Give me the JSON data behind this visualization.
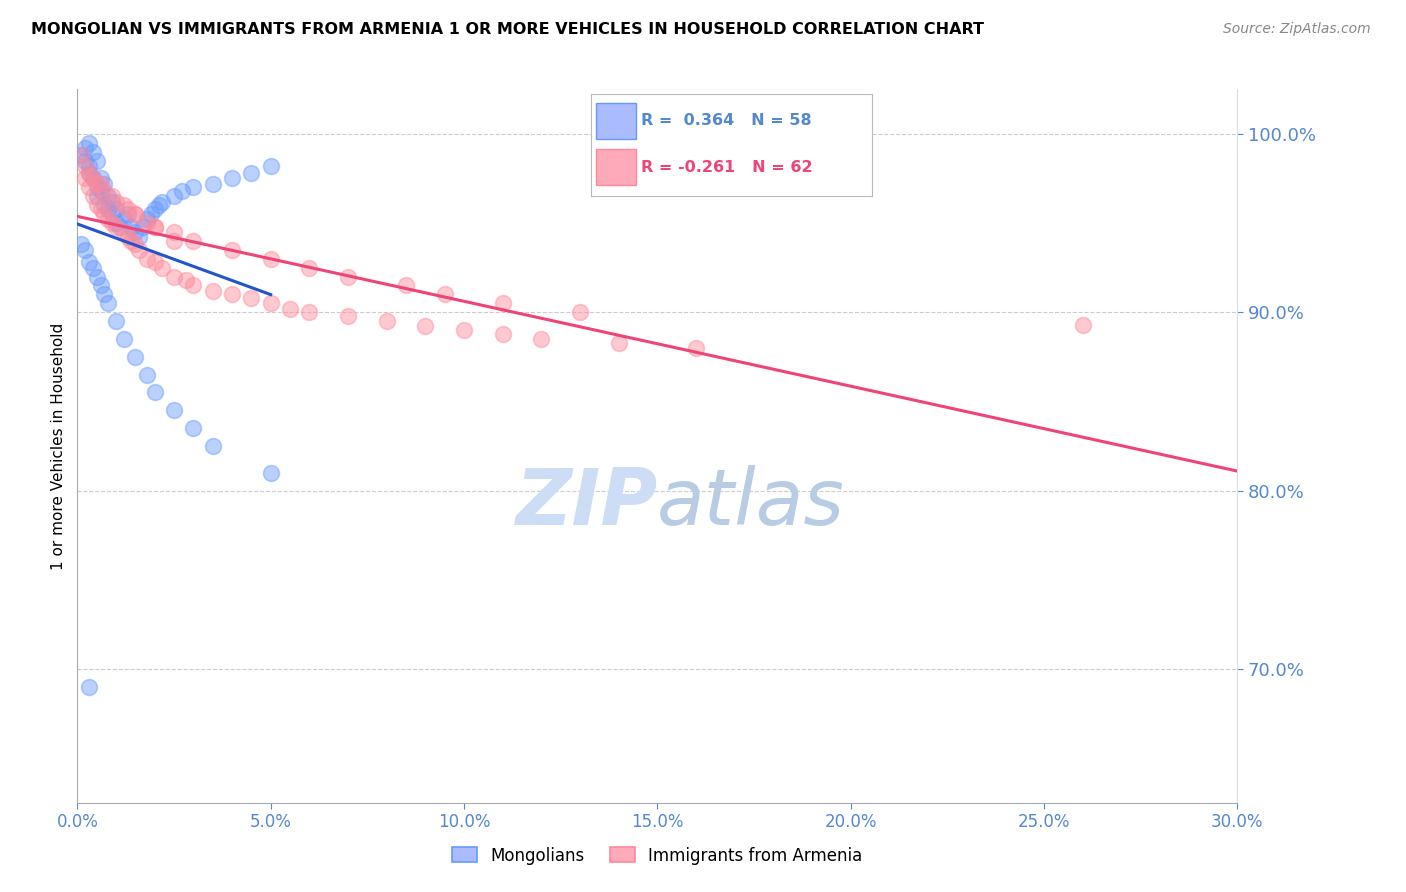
{
  "title": "MONGOLIAN VS IMMIGRANTS FROM ARMENIA 1 OR MORE VEHICLES IN HOUSEHOLD CORRELATION CHART",
  "source": "Source: ZipAtlas.com",
  "ylabel": "1 or more Vehicles in Household",
  "xmin": 0.0,
  "xmax": 0.3,
  "ymin": 0.625,
  "ymax": 1.025,
  "yticks": [
    0.7,
    0.8,
    0.9,
    1.0
  ],
  "ytick_labels": [
    "70.0%",
    "80.0%",
    "90.0%",
    "100.0%"
  ],
  "xticks": [
    0.0,
    0.05,
    0.1,
    0.15,
    0.2,
    0.25,
    0.3
  ],
  "xtick_labels": [
    "0.0%",
    "5.0%",
    "10.0%",
    "15.0%",
    "20.0%",
    "25.0%",
    "30.0%"
  ],
  "blue_R": 0.364,
  "blue_N": 58,
  "pink_R": -0.261,
  "pink_N": 62,
  "blue_color": "#6699ff",
  "pink_color": "#ff8899",
  "blue_trend_color": "#2255cc",
  "pink_trend_color": "#ee4477",
  "watermark_color": "#ccddf5",
  "grid_color": "#cccccc",
  "tick_color": "#5588cc",
  "blue_scatter_x": [
    0.001,
    0.002,
    0.002,
    0.003,
    0.003,
    0.003,
    0.004,
    0.004,
    0.005,
    0.005,
    0.005,
    0.006,
    0.006,
    0.007,
    0.007,
    0.008,
    0.008,
    0.009,
    0.009,
    0.01,
    0.01,
    0.011,
    0.012,
    0.013,
    0.014,
    0.015,
    0.016,
    0.017,
    0.018,
    0.019,
    0.02,
    0.021,
    0.022,
    0.025,
    0.027,
    0.03,
    0.035,
    0.04,
    0.045,
    0.05,
    0.001,
    0.002,
    0.003,
    0.004,
    0.005,
    0.006,
    0.007,
    0.008,
    0.01,
    0.012,
    0.015,
    0.018,
    0.02,
    0.025,
    0.03,
    0.035,
    0.05,
    0.003
  ],
  "blue_scatter_y": [
    0.988,
    0.992,
    0.985,
    0.995,
    0.982,
    0.978,
    0.99,
    0.975,
    0.985,
    0.97,
    0.965,
    0.975,
    0.968,
    0.972,
    0.96,
    0.965,
    0.958,
    0.962,
    0.955,
    0.958,
    0.95,
    0.948,
    0.952,
    0.955,
    0.948,
    0.945,
    0.942,
    0.948,
    0.952,
    0.955,
    0.958,
    0.96,
    0.962,
    0.965,
    0.968,
    0.97,
    0.972,
    0.975,
    0.978,
    0.982,
    0.938,
    0.935,
    0.928,
    0.925,
    0.92,
    0.915,
    0.91,
    0.905,
    0.895,
    0.885,
    0.875,
    0.865,
    0.855,
    0.845,
    0.835,
    0.825,
    0.81,
    0.69
  ],
  "pink_scatter_x": [
    0.001,
    0.002,
    0.003,
    0.004,
    0.005,
    0.006,
    0.007,
    0.008,
    0.009,
    0.01,
    0.012,
    0.013,
    0.014,
    0.015,
    0.016,
    0.018,
    0.02,
    0.022,
    0.025,
    0.028,
    0.03,
    0.035,
    0.04,
    0.045,
    0.05,
    0.055,
    0.06,
    0.07,
    0.08,
    0.09,
    0.1,
    0.11,
    0.12,
    0.14,
    0.16,
    0.003,
    0.005,
    0.007,
    0.01,
    0.013,
    0.015,
    0.018,
    0.02,
    0.025,
    0.03,
    0.04,
    0.05,
    0.06,
    0.07,
    0.085,
    0.095,
    0.11,
    0.13,
    0.002,
    0.004,
    0.006,
    0.009,
    0.012,
    0.015,
    0.02,
    0.025,
    0.26
  ],
  "pink_scatter_y": [
    0.988,
    0.975,
    0.97,
    0.965,
    0.96,
    0.958,
    0.955,
    0.952,
    0.95,
    0.948,
    0.945,
    0.942,
    0.94,
    0.938,
    0.935,
    0.93,
    0.928,
    0.925,
    0.92,
    0.918,
    0.915,
    0.912,
    0.91,
    0.908,
    0.905,
    0.902,
    0.9,
    0.898,
    0.895,
    0.892,
    0.89,
    0.888,
    0.885,
    0.883,
    0.88,
    0.978,
    0.972,
    0.968,
    0.962,
    0.958,
    0.955,
    0.95,
    0.948,
    0.945,
    0.94,
    0.935,
    0.93,
    0.925,
    0.92,
    0.915,
    0.91,
    0.905,
    0.9,
    0.982,
    0.975,
    0.972,
    0.965,
    0.96,
    0.955,
    0.948,
    0.94,
    0.893
  ]
}
